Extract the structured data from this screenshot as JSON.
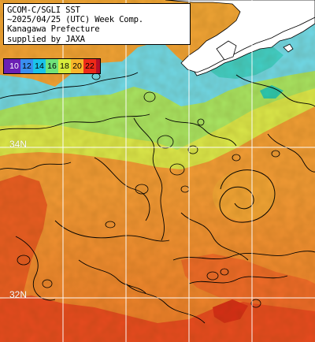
{
  "title": {
    "line1": "GCOM-C/SGLI SST",
    "line2": "~2025/04/25 (UTC) Week Comp.",
    "line3": "Kanagawa Prefecture",
    "line4": "supplied by JAXA"
  },
  "colorbar": {
    "ticks": [
      "10",
      "12",
      "14",
      "16",
      "18",
      "20",
      "22"
    ],
    "colors": [
      "#6a1fb4",
      "#3a52e8",
      "#19a9ff",
      "#6fe37a",
      "#d8ec3c",
      "#f8b52a",
      "#ff5a1a",
      "#ee1b16"
    ]
  },
  "lat_labels": {
    "north": "34N",
    "south": "32N"
  },
  "palette": {
    "land": "#ffffff",
    "grid": "#ffffff",
    "contour": "#000000",
    "sst_cold": "#62d8f0",
    "sst_mid": "#bfe74a",
    "sst_warm": "#f0a030",
    "sst_hot": "#e0401a"
  }
}
